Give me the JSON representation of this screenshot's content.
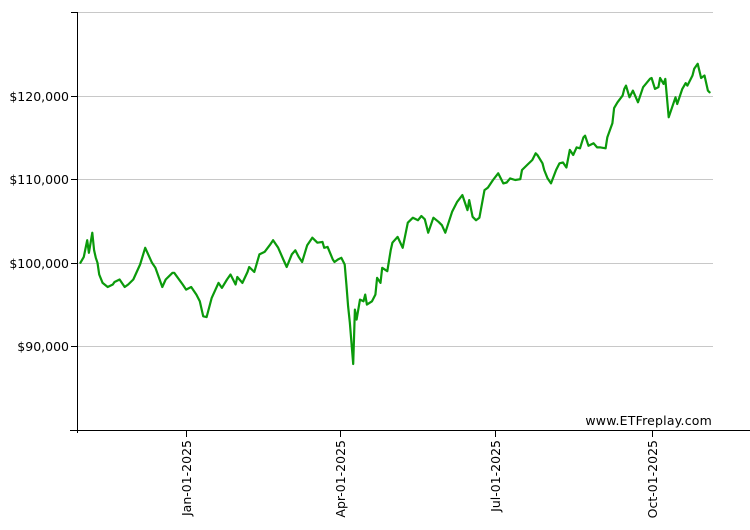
{
  "watermark": {
    "text": "www.ETFreplay.com"
  },
  "colors": {
    "line_green": "#0b9a0b",
    "grid_gray": "#c8c8c8",
    "axis_black": "#000000",
    "label_black": "#000000",
    "background": "#ffffff"
  },
  "chart_data": {
    "type": "line",
    "title": "",
    "legend": "none",
    "grid": "horizontal",
    "x_axis": {
      "unit": "date",
      "domain_days": [
        0,
        373
      ],
      "ticks": [
        {
          "day": 64,
          "label": "Jan-01-2025"
        },
        {
          "day": 154,
          "label": "Apr-01-2025"
        },
        {
          "day": 245,
          "label": "Jul-01-2025"
        },
        {
          "day": 337,
          "label": "Oct-01-2025"
        }
      ]
    },
    "y_axis": {
      "range": [
        80000,
        130000
      ],
      "ticks": [
        {
          "value": 120000,
          "label": "$120,000"
        },
        {
          "value": 110000,
          "label": "$110,000"
        },
        {
          "value": 100000,
          "label": "$100,000"
        },
        {
          "value": 90000,
          "label": "$90,000"
        }
      ]
    },
    "series": [
      {
        "name": "portfolio_value_usd",
        "color": "#0b9a0b",
        "points": [
          [
            2,
            100000
          ],
          [
            4,
            100700
          ],
          [
            6,
            102700
          ],
          [
            7,
            101200
          ],
          [
            9,
            103600
          ],
          [
            10,
            101500
          ],
          [
            11,
            100600
          ],
          [
            12,
            100000
          ],
          [
            13,
            98600
          ],
          [
            15,
            97600
          ],
          [
            18,
            97100
          ],
          [
            21,
            97400
          ],
          [
            22,
            97700
          ],
          [
            25,
            98000
          ],
          [
            28,
            97100
          ],
          [
            30,
            97400
          ],
          [
            33,
            98000
          ],
          [
            37,
            99800
          ],
          [
            40,
            101800
          ],
          [
            44,
            100000
          ],
          [
            46,
            99400
          ],
          [
            50,
            97100
          ],
          [
            52,
            98000
          ],
          [
            56,
            98800
          ],
          [
            57,
            98800
          ],
          [
            62,
            97400
          ],
          [
            64,
            96800
          ],
          [
            67,
            97100
          ],
          [
            70,
            96200
          ],
          [
            72,
            95400
          ],
          [
            74,
            93600
          ],
          [
            76,
            93500
          ],
          [
            79,
            95800
          ],
          [
            83,
            97600
          ],
          [
            85,
            97000
          ],
          [
            88,
            98000
          ],
          [
            90,
            98600
          ],
          [
            93,
            97400
          ],
          [
            94,
            98300
          ],
          [
            97,
            97600
          ],
          [
            100,
            98900
          ],
          [
            101,
            99500
          ],
          [
            104,
            98900
          ],
          [
            107,
            101000
          ],
          [
            110,
            101300
          ],
          [
            113,
            102100
          ],
          [
            115,
            102700
          ],
          [
            118,
            101800
          ],
          [
            121,
            100400
          ],
          [
            123,
            99500
          ],
          [
            126,
            101000
          ],
          [
            128,
            101500
          ],
          [
            130,
            100700
          ],
          [
            132,
            100100
          ],
          [
            135,
            102100
          ],
          [
            138,
            103000
          ],
          [
            141,
            102400
          ],
          [
            144,
            102500
          ],
          [
            145,
            101800
          ],
          [
            147,
            101900
          ],
          [
            150,
            100400
          ],
          [
            151,
            100100
          ],
          [
            153,
            100400
          ],
          [
            155,
            100600
          ],
          [
            157,
            99800
          ],
          [
            158,
            97400
          ],
          [
            159,
            94800
          ],
          [
            160,
            92900
          ],
          [
            162,
            87900
          ],
          [
            163,
            94400
          ],
          [
            164,
            93200
          ],
          [
            166,
            95600
          ],
          [
            168,
            95400
          ],
          [
            169,
            96200
          ],
          [
            170,
            95000
          ],
          [
            173,
            95400
          ],
          [
            175,
            96200
          ],
          [
            176,
            98200
          ],
          [
            178,
            97600
          ],
          [
            179,
            99400
          ],
          [
            182,
            99000
          ],
          [
            184,
            101500
          ],
          [
            185,
            102400
          ],
          [
            188,
            103100
          ],
          [
            191,
            101800
          ],
          [
            194,
            104800
          ],
          [
            197,
            105400
          ],
          [
            200,
            105100
          ],
          [
            202,
            105600
          ],
          [
            204,
            105200
          ],
          [
            206,
            103600
          ],
          [
            209,
            105400
          ],
          [
            212,
            104900
          ],
          [
            214,
            104500
          ],
          [
            216,
            103600
          ],
          [
            220,
            106100
          ],
          [
            223,
            107300
          ],
          [
            226,
            108100
          ],
          [
            229,
            106300
          ],
          [
            230,
            107500
          ],
          [
            232,
            105500
          ],
          [
            234,
            105100
          ],
          [
            236,
            105400
          ],
          [
            239,
            108700
          ],
          [
            241,
            109000
          ],
          [
            244,
            109900
          ],
          [
            247,
            110700
          ],
          [
            250,
            109500
          ],
          [
            252,
            109600
          ],
          [
            254,
            110100
          ],
          [
            257,
            109900
          ],
          [
            260,
            110000
          ],
          [
            261,
            111100
          ],
          [
            264,
            111700
          ],
          [
            267,
            112300
          ],
          [
            269,
            113100
          ],
          [
            270,
            112900
          ],
          [
            273,
            111900
          ],
          [
            274,
            111100
          ],
          [
            276,
            110100
          ],
          [
            278,
            109500
          ],
          [
            281,
            111100
          ],
          [
            283,
            111900
          ],
          [
            285,
            112000
          ],
          [
            287,
            111400
          ],
          [
            289,
            113500
          ],
          [
            291,
            112900
          ],
          [
            293,
            113800
          ],
          [
            295,
            113700
          ],
          [
            297,
            115000
          ],
          [
            298,
            115200
          ],
          [
            300,
            114000
          ],
          [
            303,
            114300
          ],
          [
            305,
            113800
          ],
          [
            307,
            113800
          ],
          [
            310,
            113700
          ],
          [
            311,
            115000
          ],
          [
            314,
            116700
          ],
          [
            315,
            118500
          ],
          [
            317,
            119200
          ],
          [
            320,
            120000
          ],
          [
            321,
            120800
          ],
          [
            322,
            121200
          ],
          [
            324,
            119800
          ],
          [
            326,
            120600
          ],
          [
            329,
            119200
          ],
          [
            332,
            121000
          ],
          [
            334,
            121500
          ],
          [
            336,
            122000
          ],
          [
            337,
            122100
          ],
          [
            339,
            120800
          ],
          [
            341,
            121000
          ],
          [
            342,
            122100
          ],
          [
            344,
            121400
          ],
          [
            345,
            122000
          ],
          [
            347,
            117400
          ],
          [
            351,
            119800
          ],
          [
            352,
            119000
          ],
          [
            355,
            120800
          ],
          [
            357,
            121500
          ],
          [
            358,
            121200
          ],
          [
            361,
            122400
          ],
          [
            362,
            123200
          ],
          [
            364,
            123800
          ],
          [
            366,
            122100
          ],
          [
            368,
            122400
          ],
          [
            370,
            120600
          ],
          [
            371,
            120400
          ]
        ]
      }
    ]
  }
}
